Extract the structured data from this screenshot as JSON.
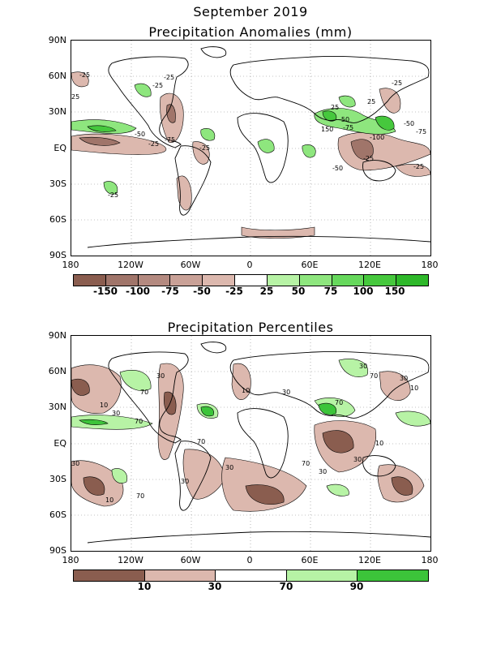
{
  "titles": {
    "month": "September 2019",
    "anomalies": "Precipitation Anomalies (mm)",
    "percentiles": "Precipitation Percentiles"
  },
  "axes": {
    "lat_labels": [
      "90N",
      "60N",
      "30N",
      "EQ",
      "30S",
      "60S",
      "90S"
    ],
    "lon_labels": [
      "180",
      "120W",
      "60W",
      "0",
      "60E",
      "120E",
      "180"
    ]
  },
  "anomaly_legend": {
    "labels": [
      "-150",
      "-100",
      "-75",
      "-50",
      "-25",
      "25",
      "50",
      "75",
      "100",
      "150"
    ],
    "colors": [
      "#8a5d4f",
      "#a0756a",
      "#b48a80",
      "#c9a197",
      "#dcb8ae",
      "#ffffff",
      "#b7f3a5",
      "#8ee67e",
      "#66d85c",
      "#46c83d",
      "#2eb82a"
    ]
  },
  "percentile_legend": {
    "labels": [
      "10",
      "30",
      "70",
      "90"
    ],
    "colors": [
      "#8a5d4f",
      "#dcb8ae",
      "#ffffff",
      "#b7f3a5",
      "#3cc43a"
    ]
  },
  "contour_labels_anom": [
    "-25",
    "-25",
    "25",
    "-25",
    "-50",
    "-25",
    "-75",
    "-25",
    "-25",
    "25",
    "25",
    "-50",
    "-25",
    "-75",
    "150",
    "-50",
    "-100",
    "-75",
    "-25",
    "-50",
    "-25"
  ],
  "contour_labels_pct": [
    "30",
    "70",
    "10",
    "30",
    "70",
    "30",
    "10",
    "30",
    "70",
    "70",
    "30",
    "10",
    "70",
    "30",
    "30",
    "10",
    "30",
    "70",
    "30",
    "30",
    "70",
    "10"
  ]
}
